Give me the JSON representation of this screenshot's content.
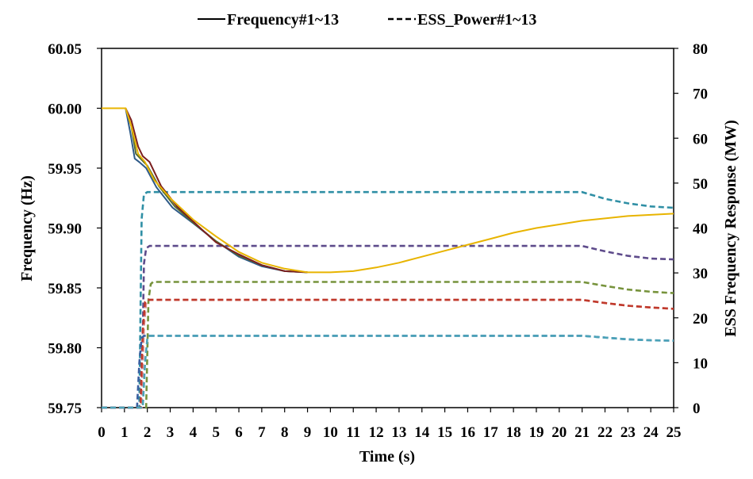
{
  "chart_data": {
    "type": "line",
    "xlabel": "Time (s)",
    "ylabel_left": "Frequency (Hz)",
    "ylabel_right": "ESS Frequency Response (MW)",
    "xlim": [
      0,
      25
    ],
    "ylim_left": [
      59.75,
      60.05
    ],
    "ylim_right": [
      0,
      80
    ],
    "x_ticks": [
      "0",
      "1",
      "2",
      "3",
      "4",
      "5",
      "6",
      "7",
      "8",
      "9",
      "10",
      "11",
      "12",
      "13",
      "14",
      "15",
      "16",
      "17",
      "18",
      "19",
      "20",
      "21",
      "22",
      "23",
      "24",
      "25"
    ],
    "y_left_ticks": [
      "59.75",
      "59.80",
      "59.85",
      "59.90",
      "59.95",
      "60.00",
      "60.05"
    ],
    "y_right_ticks": [
      "0",
      "10",
      "20",
      "30",
      "40",
      "50",
      "60",
      "70",
      "80"
    ],
    "grid": false,
    "legend_position": "top-center",
    "legend": [
      {
        "label": "Frequency#1~13",
        "style": "solid"
      },
      {
        "label": "ESS_Power#1~13",
        "style": "dashed"
      }
    ],
    "frequency_series": [
      {
        "color": "#E8B400",
        "axis": "left",
        "x": [
          0,
          1.05,
          1.3,
          1.6,
          1.9,
          2.3,
          3,
          4,
          5,
          6,
          7,
          8,
          9,
          10,
          11,
          12,
          13,
          14,
          15,
          16,
          17,
          18,
          19,
          20,
          21,
          22,
          23,
          24,
          25
        ],
        "y": [
          60.0,
          60.0,
          59.985,
          59.962,
          59.955,
          59.94,
          59.925,
          59.907,
          59.893,
          59.88,
          59.871,
          59.866,
          59.863,
          59.863,
          59.864,
          59.867,
          59.871,
          59.876,
          59.881,
          59.886,
          59.891,
          59.896,
          59.9,
          59.903,
          59.906,
          59.908,
          59.91,
          59.911,
          59.912
        ]
      },
      {
        "color": "#7B1F1F",
        "axis": "left",
        "x": [
          1.05,
          1.3,
          1.6,
          1.8,
          2.1,
          2.6,
          3.3,
          4.2,
          5,
          6,
          7,
          8,
          9
        ],
        "y": [
          60.0,
          59.99,
          59.968,
          59.96,
          59.955,
          59.935,
          59.918,
          59.902,
          59.888,
          59.878,
          59.869,
          59.864,
          59.863
        ]
      },
      {
        "color": "#556B2F",
        "axis": "left",
        "x": [
          1.05,
          1.3,
          1.5,
          1.7,
          2.0,
          2.5,
          3.2,
          4.1,
          5,
          6,
          7,
          8,
          9
        ],
        "y": [
          60.0,
          59.985,
          59.962,
          59.958,
          59.952,
          59.935,
          59.918,
          59.903,
          59.889,
          59.877,
          59.869,
          59.864,
          59.863
        ]
      },
      {
        "color": "#2E5A88",
        "axis": "left",
        "x": [
          1.05,
          1.25,
          1.45,
          1.65,
          1.95,
          2.4,
          3.1,
          4.0,
          5,
          6,
          7,
          8,
          9
        ],
        "y": [
          60.0,
          59.98,
          59.958,
          59.955,
          59.95,
          59.934,
          59.917,
          59.904,
          59.889,
          59.876,
          59.868,
          59.864,
          59.863
        ]
      }
    ],
    "ess_power_series": [
      {
        "color": "#2F8FA5",
        "axis": "right",
        "x": [
          0,
          1.65,
          1.75,
          1.85,
          2.0,
          21,
          22,
          23,
          24,
          25
        ],
        "y": [
          0,
          0,
          42,
          47.5,
          48,
          48,
          46.5,
          45.5,
          44.8,
          44.5
        ]
      },
      {
        "color": "#5E4B8B",
        "axis": "right",
        "x": [
          0,
          1.75,
          1.85,
          1.95,
          2.1,
          21,
          22,
          23,
          24,
          25
        ],
        "y": [
          0,
          0,
          32,
          35.5,
          36,
          36,
          34.8,
          33.8,
          33.2,
          33
        ]
      },
      {
        "color": "#77933C",
        "axis": "right",
        "x": [
          0,
          1.95,
          2.05,
          2.15,
          2.25,
          21,
          22,
          23,
          24,
          25
        ],
        "y": [
          0,
          0,
          24,
          27.5,
          28,
          28,
          27.1,
          26.3,
          25.8,
          25.5
        ]
      },
      {
        "color": "#D98C8C",
        "axis": "right",
        "x": [
          0,
          1.75,
          1.85,
          1.95,
          2.05,
          21,
          22,
          23,
          24,
          25
        ],
        "y": [
          0,
          0,
          18,
          23.5,
          24,
          24,
          23.3,
          22.7,
          22.3,
          22
        ]
      },
      {
        "color": "#C0392B",
        "axis": "right",
        "x": [
          0,
          1.7,
          1.8,
          1.9,
          2.0,
          21,
          22,
          23,
          24,
          25
        ],
        "y": [
          0,
          0,
          17,
          23.5,
          24,
          24,
          23.3,
          22.7,
          22.3,
          22
        ]
      },
      {
        "color": "#3A5FA0",
        "axis": "right",
        "x": [
          0,
          1.55,
          1.65,
          1.75,
          1.85,
          21,
          22,
          23,
          24,
          25
        ],
        "y": [
          0,
          0,
          10,
          15.5,
          16,
          16,
          15.6,
          15.2,
          15,
          14.9
        ]
      },
      {
        "color": "#4BA3B8",
        "axis": "right",
        "x": [
          0,
          1.8,
          1.9,
          2.0,
          2.1,
          21,
          22,
          23,
          24,
          25
        ],
        "y": [
          0,
          0,
          10,
          15.5,
          16,
          16,
          15.6,
          15.2,
          15,
          14.9
        ]
      }
    ]
  }
}
